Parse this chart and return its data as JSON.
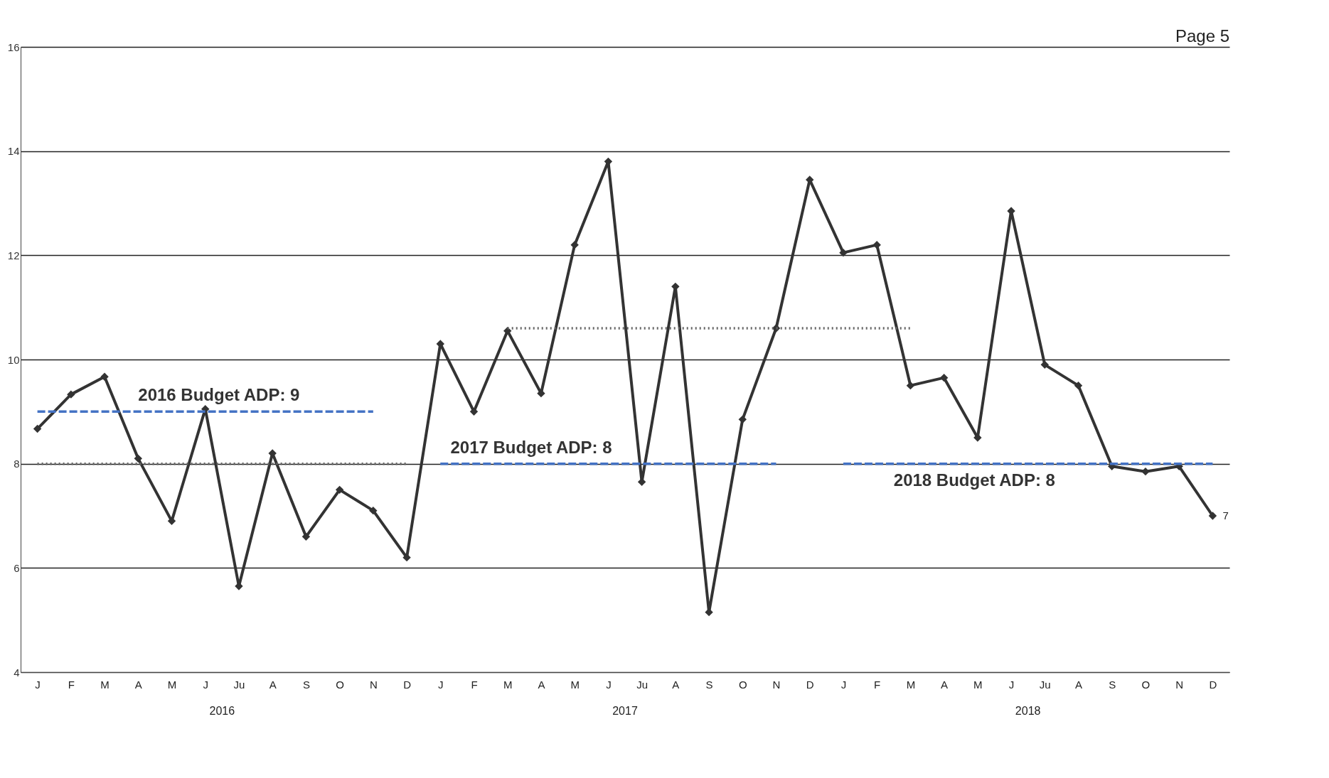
{
  "chart_data": {
    "type": "line",
    "categories": [
      "J",
      "F",
      "M",
      "A",
      "M",
      "J",
      "Ju",
      "A",
      "S",
      "O",
      "N",
      "D",
      "J",
      "F",
      "M",
      "A",
      "M",
      "J",
      "Ju",
      "A",
      "S",
      "O",
      "N",
      "D",
      "J",
      "F",
      "M",
      "A",
      "M",
      "J",
      "Ju",
      "A",
      "S",
      "O",
      "N",
      "D"
    ],
    "series": [
      {
        "color": "#333333",
        "marker": "diamond",
        "line_style": "solid",
        "values": [
          8.67,
          9.33,
          9.67,
          8.1,
          6.9,
          9.05,
          5.65,
          8.2,
          6.6,
          7.5,
          7.1,
          6.2,
          10.3,
          9.0,
          10.55,
          9.35,
          12.2,
          13.8,
          7.65,
          11.4,
          5.15,
          8.85,
          10.6,
          13.45,
          12.05,
          12.2,
          9.5,
          9.65,
          8.5,
          12.85,
          9.9,
          9.5,
          7.95,
          7.85,
          7.95,
          7.0
        ],
        "value_labels": [
          null,
          null,
          null,
          null,
          null,
          null,
          null,
          null,
          null,
          null,
          null,
          null,
          null,
          null,
          null,
          null,
          null,
          null,
          null,
          null,
          null,
          null,
          null,
          null,
          null,
          null,
          null,
          null,
          null,
          null,
          null,
          null,
          null,
          null,
          null,
          "7"
        ]
      },
      {
        "name": "2016 Budget ADP: 9",
        "color": "#4472c4",
        "line_style": "dashed",
        "values": [
          9,
          9,
          9,
          9,
          9,
          9,
          9,
          9,
          9,
          9,
          9,
          null,
          null,
          null,
          null,
          null,
          null,
          null,
          null,
          null,
          null,
          null,
          null,
          null,
          null,
          null,
          null,
          null,
          null,
          null,
          null,
          null,
          null,
          null,
          null,
          null
        ]
      },
      {
        "name": "2017 Budget ADP: 8",
        "color": "#4472c4",
        "line_style": "dashed",
        "values": [
          null,
          null,
          null,
          null,
          null,
          null,
          null,
          null,
          null,
          null,
          null,
          null,
          8,
          8,
          8,
          8,
          8,
          8,
          8,
          8,
          8,
          8,
          8,
          null,
          null,
          null,
          null,
          null,
          null,
          null,
          null,
          null,
          null,
          null,
          null,
          null
        ]
      },
      {
        "name": "2018 Budget ADP: 8",
        "color": "#4472c4",
        "line_style": "dashed",
        "values": [
          null,
          null,
          null,
          null,
          null,
          null,
          null,
          null,
          null,
          null,
          null,
          null,
          null,
          null,
          null,
          null,
          null,
          null,
          null,
          null,
          null,
          null,
          null,
          null,
          8,
          8,
          8,
          8,
          8,
          8,
          8,
          8,
          8,
          8,
          8,
          8
        ]
      },
      {
        "color": "#666666",
        "line_style": "dotted",
        "values": [
          8,
          8,
          8,
          8,
          8,
          8,
          8,
          8,
          8,
          8,
          8,
          8,
          null,
          null,
          null,
          null,
          null,
          null,
          null,
          null,
          null,
          null,
          null,
          null,
          null,
          null,
          null,
          null,
          null,
          null,
          null,
          null,
          null,
          null,
          null,
          null
        ]
      },
      {
        "color": "#666666",
        "line_style": "dotted",
        "values": [
          null,
          null,
          null,
          null,
          null,
          null,
          null,
          null,
          null,
          null,
          null,
          null,
          null,
          null,
          10.6,
          10.6,
          10.6,
          10.6,
          10.6,
          10.6,
          10.6,
          10.6,
          10.6,
          10.6,
          10.6,
          10.6,
          10.6,
          null,
          null,
          null,
          null,
          null,
          null,
          null,
          null,
          null
        ]
      }
    ],
    "ylim": [
      4,
      16
    ],
    "yticks": [
      4,
      6,
      8,
      10,
      12,
      14,
      16
    ],
    "grid": "y",
    "annotations": [
      "2016",
      "2017",
      "2018",
      "Page 5"
    ]
  }
}
